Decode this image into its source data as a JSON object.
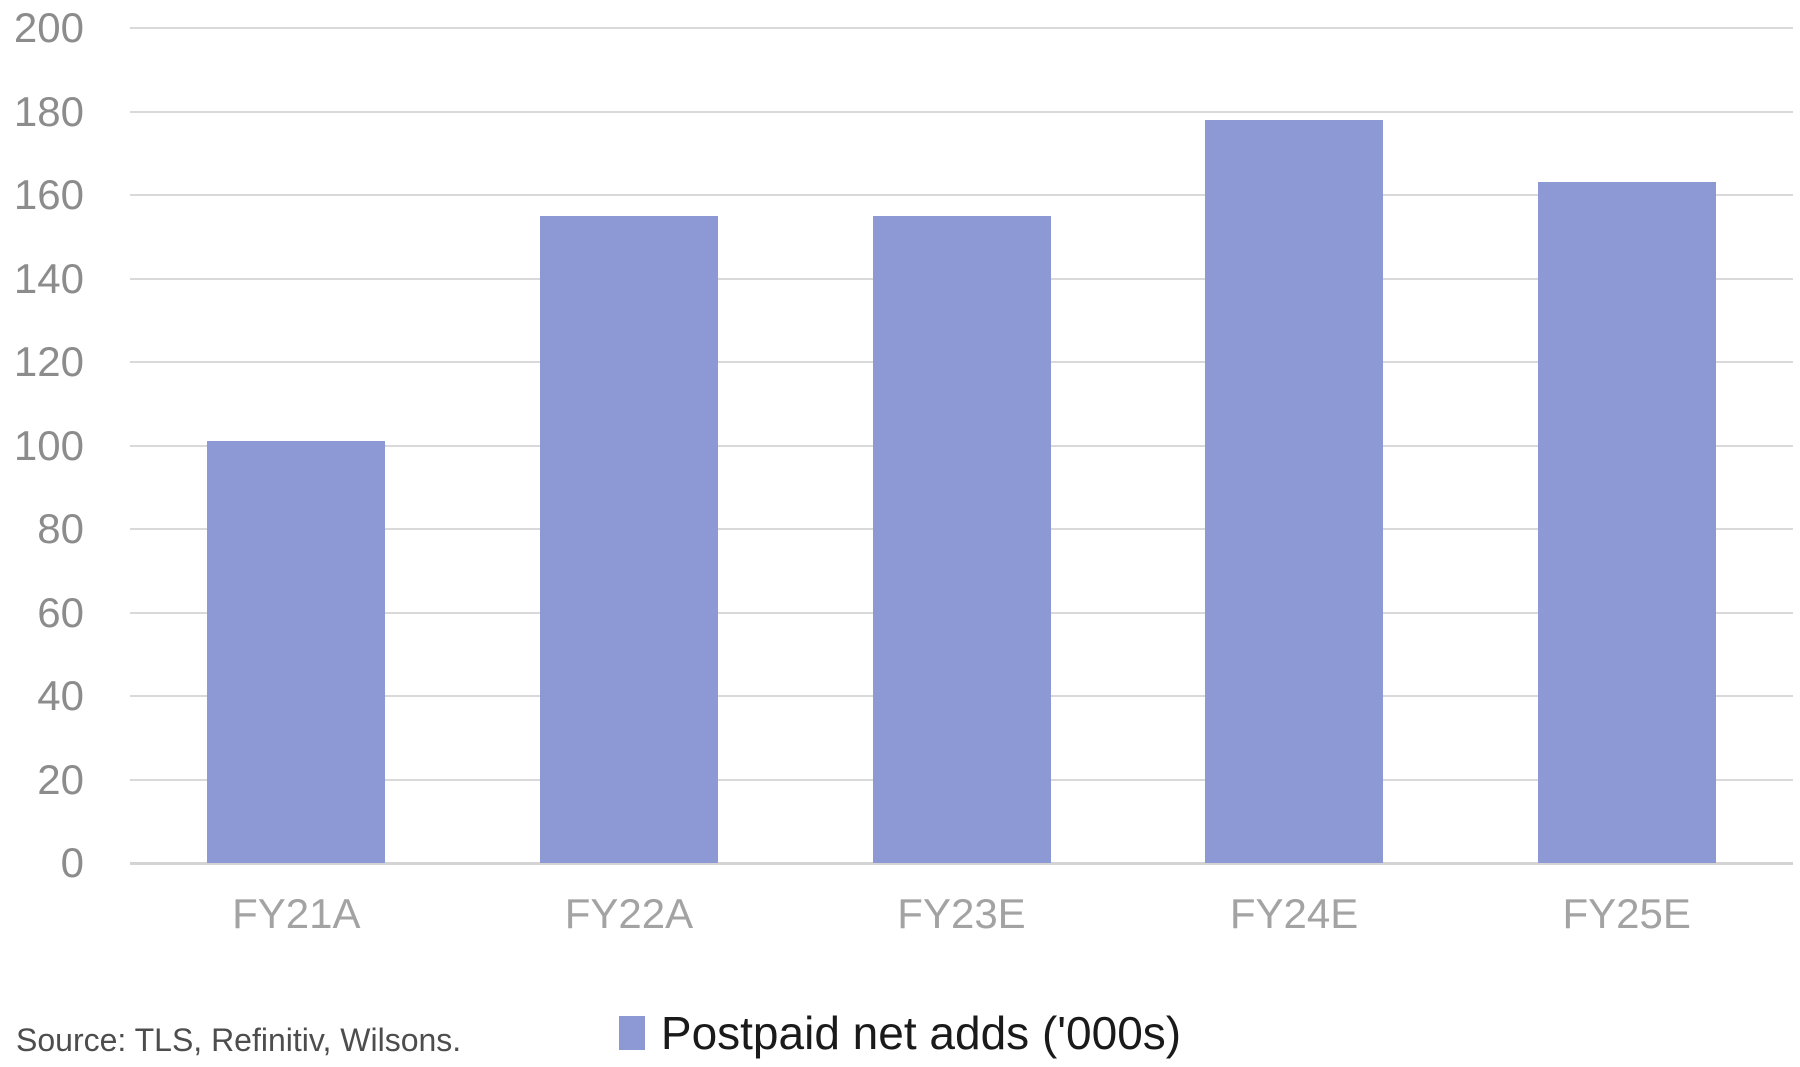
{
  "chart_data": {
    "type": "bar",
    "title": "",
    "xlabel": "",
    "ylabel": "",
    "categories": [
      "FY21A",
      "FY22A",
      "FY23E",
      "FY24E",
      "FY25E"
    ],
    "series": [
      {
        "name": "Postpaid net adds ('000s)",
        "values": [
          101,
          155,
          155,
          178,
          163
        ]
      }
    ],
    "ylim": [
      0,
      200
    ],
    "yticks": [
      0,
      20,
      40,
      60,
      80,
      100,
      120,
      140,
      160,
      180,
      200
    ],
    "grid": true,
    "legend_position": "bottom-center",
    "bar_color": "#8d99d5"
  },
  "legend": {
    "label": "Postpaid net adds ('000s)",
    "swatch_color": "#8d99d5"
  },
  "source_note": "Source: TLS, Refinitiv, Wilsons.",
  "colors": {
    "background": "#ffffff",
    "bar": "#8d99d5",
    "gridline": "#d9d9d9",
    "axis_line": "#d4d4d4",
    "y_tick_label": "#8c8c8c",
    "x_tick_label": "#a3a3a3",
    "legend_text": "#1a1a1a",
    "source_text": "#4d4d4d"
  }
}
